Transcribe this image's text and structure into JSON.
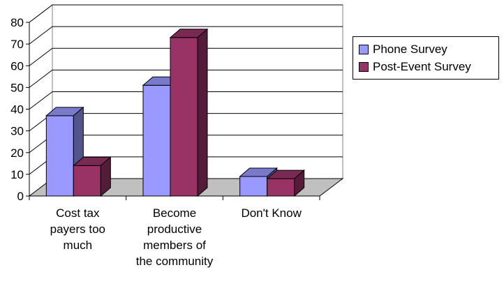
{
  "chart_data": {
    "type": "bar",
    "categories": [
      [
        "Cost tax",
        "payers too",
        "much"
      ],
      [
        "Become",
        "productive",
        "members of",
        "the community"
      ],
      [
        "Don't Know"
      ]
    ],
    "series": [
      {
        "name": "Phone Survey",
        "values": [
          37,
          51,
          9
        ],
        "color": "#9999FF"
      },
      {
        "name": "Post-Event Survey",
        "values": [
          14,
          73,
          8
        ],
        "color": "#993366"
      }
    ],
    "ylim": [
      0,
      80
    ],
    "yticks": [
      0,
      10,
      20,
      30,
      40,
      50,
      60,
      70,
      80
    ],
    "grid": true,
    "legend_position": "right",
    "floor_color": "#C0C0C0",
    "title": "",
    "xlabel": "",
    "ylabel": ""
  }
}
